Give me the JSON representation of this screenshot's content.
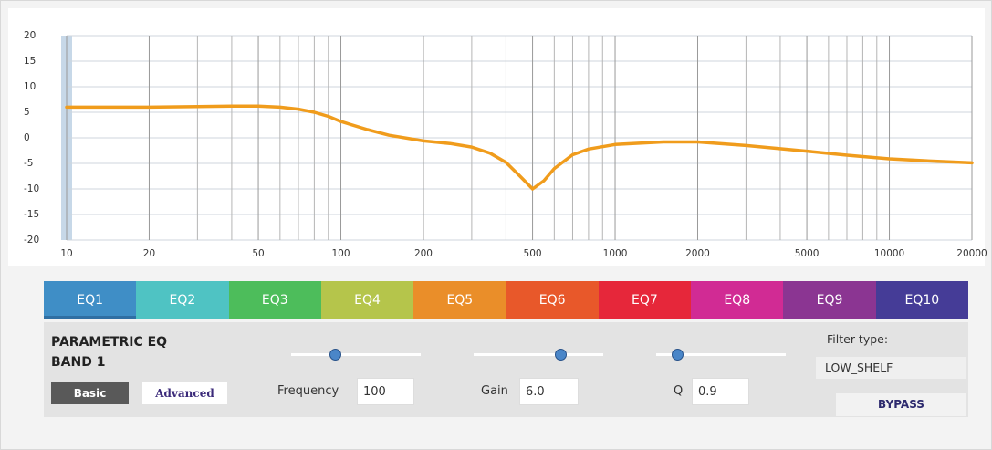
{
  "chart_data": {
    "type": "line",
    "x": [
      10,
      20,
      30,
      40,
      50,
      60,
      70,
      80,
      90,
      100,
      125,
      150,
      200,
      250,
      300,
      350,
      400,
      450,
      500,
      550,
      600,
      700,
      800,
      1000,
      1500,
      2000,
      3000,
      5000,
      7000,
      10000,
      15000,
      20000
    ],
    "values": [
      6,
      6,
      6.1,
      6.2,
      6.2,
      6,
      5.6,
      5,
      4.2,
      3.2,
      1.6,
      0.5,
      -0.6,
      -1.1,
      -1.8,
      -3,
      -4.8,
      -7.5,
      -10,
      -8.4,
      -6,
      -3.3,
      -2.2,
      -1.3,
      -0.8,
      -0.8,
      -1.5,
      -2.6,
      -3.4,
      -4.1,
      -4.6,
      -4.9
    ],
    "color": "#f09c1c",
    "log_x": true,
    "xlim": [
      10,
      20000
    ],
    "xticks": [
      10,
      20,
      50,
      100,
      200,
      500,
      1000,
      2000,
      5000,
      10000,
      20000
    ],
    "xminor": [
      30,
      40,
      60,
      70,
      80,
      90,
      300,
      400,
      600,
      700,
      800,
      900,
      3000,
      4000,
      6000,
      7000,
      8000,
      9000
    ],
    "ylim": [
      -20,
      20
    ],
    "yticks": [
      20,
      15,
      10,
      5,
      0,
      -5,
      -10,
      -15,
      -20
    ],
    "grid": true
  },
  "tabs": [
    "EQ1",
    "EQ2",
    "EQ3",
    "EQ4",
    "EQ5",
    "EQ6",
    "EQ7",
    "EQ8",
    "EQ9",
    "EQ10"
  ],
  "tab_colors": [
    "#3f8ec6",
    "#4fc3c3",
    "#4dbd5b",
    "#b5c54b",
    "#ea8e29",
    "#e8582a",
    "#e6273a",
    "#d12b94",
    "#8b3592",
    "#453c97"
  ],
  "panel": {
    "title_line1": "PARAMETRIC EQ",
    "title_line2": "BAND 1",
    "basic": "Basic",
    "advanced": "Advanced",
    "frequency_label": "Frequency",
    "frequency": "100",
    "gain_label": "Gain",
    "gain": "6.0",
    "q_label": "Q",
    "q": "0.9",
    "filter_type_label": "Filter type:",
    "filter_type": "LOW_SHELF",
    "bypass": "BYPASS"
  }
}
